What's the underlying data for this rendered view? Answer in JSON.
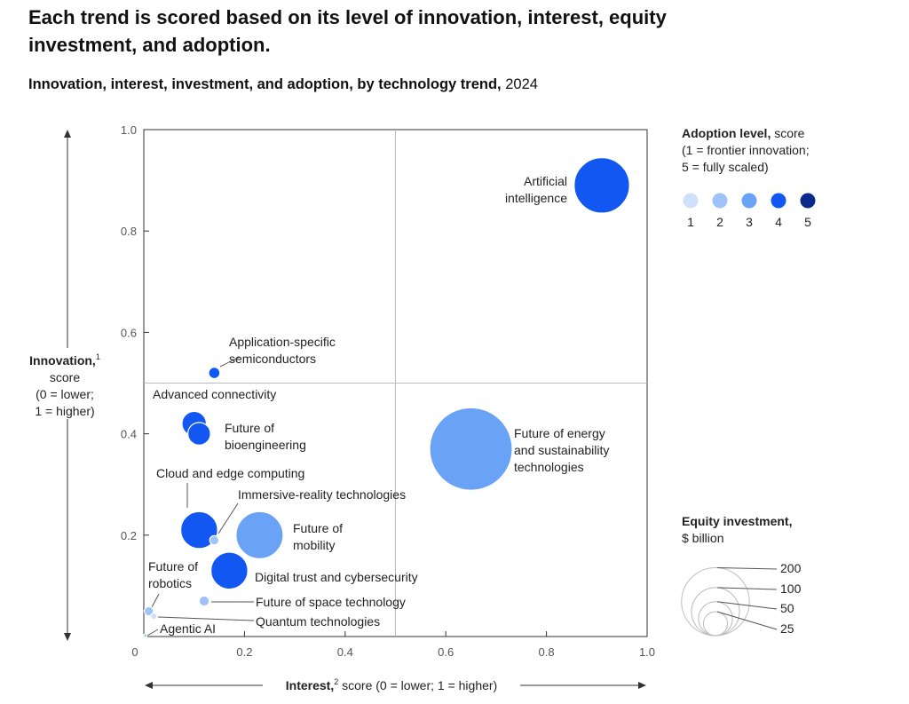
{
  "title": "Each trend is scored based on its level of innovation, interest, equity investment, and adoption.",
  "subtitle_bold": "Innovation, interest, investment, and adoption, by technology trend,",
  "subtitle_year": "2024",
  "colors": {
    "adoption": {
      "1": "#cfe1fb",
      "2": "#9fc3f8",
      "3": "#6aa2f6",
      "4": "#1257f2",
      "5": "#0a2a8a"
    }
  },
  "chart_data": {
    "type": "scatter",
    "xlim": [
      0,
      1
    ],
    "ylim": [
      0,
      1
    ],
    "x_ticks": [
      "0",
      "0.2",
      "0.4",
      "0.6",
      "0.8",
      "1.0"
    ],
    "y_ticks": [
      "0",
      "0.2",
      "0.4",
      "0.6",
      "0.8",
      "1.0"
    ],
    "xlabel_bold": "Interest,",
    "xlabel_sup": "2",
    "xlabel_rest": " score (0 = lower; 1 = higher)",
    "ylabel": {
      "bold": "Innovation,",
      "sup": "1",
      "lines": [
        "score",
        "(0 = lower;",
        "1 = higher)"
      ]
    },
    "grid": "quadrant lines at 0.5",
    "points": [
      {
        "name": "Artificial intelligence",
        "label": [
          "Artificial",
          "intelligence"
        ],
        "x": 0.91,
        "y": 0.89,
        "adoption": 4,
        "investment": 36
      },
      {
        "name": "Application-specific semiconductors",
        "label": [
          "Application-specific",
          "semiconductors"
        ],
        "x": 0.14,
        "y": 0.52,
        "adoption": 4,
        "investment": 1.5
      },
      {
        "name": "Advanced connectivity",
        "label": [
          "Advanced connectivity"
        ],
        "x": 0.1,
        "y": 0.42,
        "adoption": 4,
        "investment": 7
      },
      {
        "name": "Future of bioengineering",
        "label": [
          "Future of",
          "bioengineering"
        ],
        "x": 0.11,
        "y": 0.4,
        "adoption": 4,
        "investment": 6
      },
      {
        "name": "Future of energy and sustainability technologies",
        "label": [
          "Future of energy",
          "and sustainability",
          "technologies"
        ],
        "x": 0.65,
        "y": 0.37,
        "adoption": 3,
        "investment": 80
      },
      {
        "name": "Cloud and edge computing",
        "label": [
          "Cloud and edge computing"
        ],
        "x": 0.11,
        "y": 0.21,
        "adoption": 4,
        "investment": 16
      },
      {
        "name": "Immersive-reality technologies",
        "label": [
          "Immersive-reality technologies"
        ],
        "x": 0.14,
        "y": 0.19,
        "adoption": 2,
        "investment": 1
      },
      {
        "name": "Future of mobility",
        "label": [
          "Future of",
          "mobility"
        ],
        "x": 0.23,
        "y": 0.2,
        "adoption": 3,
        "investment": 26
      },
      {
        "name": "Digital trust and cybersecurity",
        "label": [
          "Digital trust and cybersecurity"
        ],
        "x": 0.17,
        "y": 0.13,
        "adoption": 4,
        "investment": 16
      },
      {
        "name": "Future of space technology",
        "label": [
          "Future of space technology"
        ],
        "x": 0.12,
        "y": 0.07,
        "adoption": 2,
        "investment": 1.2
      },
      {
        "name": "Future of robotics",
        "label": [
          "Future of",
          "robotics"
        ],
        "x": 0.01,
        "y": 0.05,
        "adoption": 2,
        "investment": 1
      },
      {
        "name": "Quantum technologies",
        "label": [
          "Quantum technologies"
        ],
        "x": 0.02,
        "y": 0.04,
        "adoption": 1,
        "investment": 0.5
      },
      {
        "name": "Agentic AI",
        "label": [
          "Agentic AI"
        ],
        "x": 0.003,
        "y": 0.002,
        "adoption": 2,
        "investment": 0.1
      }
    ]
  },
  "legend_adoption": {
    "title_bold": "Adoption level,",
    "title_rest": " score",
    "lines": [
      "(1 = frontier innovation;",
      "5 = fully scaled)"
    ],
    "levels": [
      "1",
      "2",
      "3",
      "4",
      "5"
    ]
  },
  "legend_investment": {
    "title": "Equity investment,",
    "unit": "$ billion",
    "sizes": [
      200,
      100,
      50,
      25
    ],
    "labels": [
      "200",
      "100",
      "50",
      "25"
    ]
  }
}
